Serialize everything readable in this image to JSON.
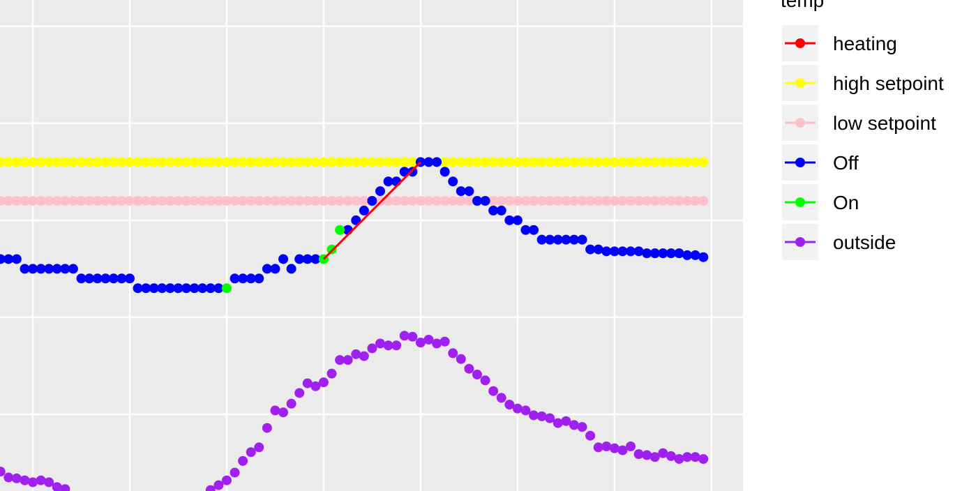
{
  "chart_data": {
    "type": "scatter",
    "legend_title": "temp",
    "legend_position": "right",
    "grid": true,
    "background": "#ebebeb",
    "xlim": [
      -4.06,
      87.9
    ],
    "ylim": [
      -0.79,
      4.27
    ],
    "xgrid": [
      0,
      12,
      24,
      36,
      48,
      60,
      72,
      84
    ],
    "ygrid": [
      0,
      1,
      2,
      3,
      4
    ],
    "x": [
      -4,
      -3,
      -2,
      -1,
      0,
      1,
      2,
      3,
      4,
      5,
      6,
      7,
      8,
      9,
      10,
      11,
      12,
      13,
      14,
      15,
      16,
      17,
      18,
      19,
      20,
      21,
      22,
      23,
      24,
      25,
      26,
      27,
      28,
      29,
      30,
      31,
      32,
      33,
      34,
      35,
      36,
      37,
      38,
      39,
      40,
      41,
      42,
      43,
      44,
      45,
      46,
      47,
      48,
      49,
      50,
      51,
      52,
      53,
      54,
      55,
      56,
      57,
      58,
      59,
      60,
      61,
      62,
      63,
      64,
      65,
      66,
      67,
      68,
      69,
      70,
      71,
      72,
      73,
      74,
      75,
      76,
      77,
      78,
      79,
      80,
      81,
      82,
      83
    ],
    "series": [
      {
        "name": "heating",
        "color": "#ff0000",
        "mark": "line",
        "x": [
          36,
          48
        ],
        "values": [
          1.6,
          2.6
        ]
      },
      {
        "name": "high setpoint",
        "color": "#ffff00",
        "mark": "point",
        "values": [
          2.6,
          2.6,
          2.6,
          2.6,
          2.6,
          2.6,
          2.6,
          2.6,
          2.6,
          2.6,
          2.6,
          2.6,
          2.6,
          2.6,
          2.6,
          2.6,
          2.6,
          2.6,
          2.6,
          2.6,
          2.6,
          2.6,
          2.6,
          2.6,
          2.6,
          2.6,
          2.6,
          2.6,
          2.6,
          2.6,
          2.6,
          2.6,
          2.6,
          2.6,
          2.6,
          2.6,
          2.6,
          2.6,
          2.6,
          2.6,
          2.6,
          2.6,
          2.6,
          2.6,
          2.6,
          2.6,
          2.6,
          2.6,
          2.6,
          2.6,
          2.6,
          2.6,
          2.6,
          2.6,
          2.6,
          2.6,
          2.6,
          2.6,
          2.6,
          2.6,
          2.6,
          2.6,
          2.6,
          2.6,
          2.6,
          2.6,
          2.6,
          2.6,
          2.6,
          2.6,
          2.6,
          2.6,
          2.6,
          2.6,
          2.6,
          2.6,
          2.6,
          2.6,
          2.6,
          2.6,
          2.6,
          2.6,
          2.6,
          2.6,
          2.6,
          2.6,
          2.6,
          2.6
        ]
      },
      {
        "name": "low setpoint",
        "color": "#ffc0cb",
        "mark": "point",
        "values": [
          2.2,
          2.2,
          2.2,
          2.2,
          2.2,
          2.2,
          2.2,
          2.2,
          2.2,
          2.2,
          2.2,
          2.2,
          2.2,
          2.2,
          2.2,
          2.2,
          2.2,
          2.2,
          2.2,
          2.2,
          2.2,
          2.2,
          2.2,
          2.2,
          2.2,
          2.2,
          2.2,
          2.2,
          2.2,
          2.2,
          2.2,
          2.2,
          2.2,
          2.2,
          2.2,
          2.2,
          2.2,
          2.2,
          2.2,
          2.2,
          2.2,
          2.2,
          2.2,
          2.2,
          2.2,
          2.2,
          2.2,
          2.2,
          2.2,
          2.2,
          2.2,
          2.2,
          2.2,
          2.2,
          2.2,
          2.2,
          2.2,
          2.2,
          2.2,
          2.2,
          2.2,
          2.2,
          2.2,
          2.2,
          2.2,
          2.2,
          2.2,
          2.2,
          2.2,
          2.2,
          2.2,
          2.2,
          2.2,
          2.2,
          2.2,
          2.2,
          2.2,
          2.2,
          2.2,
          2.2,
          2.2,
          2.2,
          2.2,
          2.2,
          2.2,
          2.2,
          2.2,
          2.2
        ]
      },
      {
        "name": "Off",
        "color": "#0000ff",
        "mark": "point",
        "values": [
          1.6,
          1.6,
          1.6,
          1.5,
          1.5,
          1.5,
          1.5,
          1.5,
          1.5,
          1.5,
          1.4,
          1.4,
          1.4,
          1.4,
          1.4,
          1.4,
          1.4,
          1.3,
          1.3,
          1.3,
          1.3,
          1.3,
          1.3,
          1.3,
          1.3,
          1.3,
          1.3,
          1.3,
          null,
          1.4,
          1.4,
          1.4,
          1.4,
          1.5,
          1.5,
          1.6,
          1.5,
          1.6,
          1.6,
          1.6,
          null,
          null,
          null,
          1.9,
          2.0,
          2.1,
          2.2,
          2.3,
          2.4,
          2.4,
          2.5,
          2.5,
          2.6,
          2.6,
          2.6,
          2.5,
          2.4,
          2.3,
          2.3,
          2.2,
          2.2,
          2.1,
          2.1,
          2.0,
          2.0,
          1.9,
          1.9,
          1.8,
          1.8,
          1.8,
          1.8,
          1.8,
          1.8,
          1.7,
          1.7,
          1.68,
          1.68,
          1.68,
          1.68,
          1.68,
          1.66,
          1.66,
          1.66,
          1.66,
          1.66,
          1.64,
          1.64,
          1.62
        ]
      },
      {
        "name": "On",
        "color": "#00ff00",
        "mark": "point",
        "values": [
          null,
          null,
          null,
          null,
          null,
          null,
          null,
          null,
          null,
          null,
          null,
          null,
          null,
          null,
          null,
          null,
          null,
          null,
          null,
          null,
          null,
          null,
          null,
          null,
          null,
          null,
          null,
          null,
          1.3,
          null,
          null,
          null,
          null,
          null,
          null,
          null,
          null,
          null,
          null,
          null,
          1.6,
          1.7,
          1.9,
          null,
          null,
          null,
          null,
          null,
          null,
          null,
          null,
          null,
          null,
          null,
          null,
          null,
          null,
          null,
          null,
          null,
          null,
          null,
          null,
          null,
          null,
          null,
          null,
          null,
          null,
          null,
          null,
          null,
          null,
          null,
          null,
          null,
          null,
          null,
          null,
          null,
          null,
          null,
          null,
          null,
          null,
          null,
          null,
          null
        ]
      },
      {
        "name": "outside",
        "color": "#a020f0",
        "mark": "point",
        "values": [
          -0.59,
          -0.65,
          -0.66,
          -0.68,
          -0.7,
          -0.68,
          -0.7,
          -0.75,
          -0.77,
          null,
          null,
          null,
          null,
          null,
          null,
          null,
          null,
          null,
          null,
          null,
          null,
          null,
          null,
          null,
          null,
          null,
          -0.78,
          -0.73,
          -0.68,
          -0.6,
          -0.48,
          -0.39,
          -0.34,
          -0.14,
          0.04,
          0.02,
          0.11,
          0.22,
          0.32,
          0.29,
          0.33,
          0.42,
          0.56,
          0.56,
          0.62,
          0.6,
          0.68,
          0.73,
          0.71,
          0.71,
          0.81,
          0.8,
          0.74,
          0.77,
          0.73,
          0.75,
          0.63,
          0.57,
          0.47,
          0.41,
          0.35,
          0.24,
          0.17,
          0.1,
          0.06,
          0.04,
          -0.01,
          -0.02,
          -0.04,
          -0.09,
          -0.07,
          -0.11,
          -0.13,
          -0.22,
          -0.34,
          -0.33,
          -0.35,
          -0.37,
          -0.33,
          -0.41,
          -0.42,
          -0.44,
          -0.4,
          -0.43,
          -0.46,
          -0.44,
          -0.44,
          -0.46
        ]
      }
    ]
  }
}
